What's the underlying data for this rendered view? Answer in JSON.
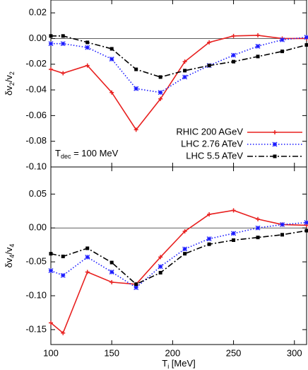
{
  "chart_data": [
    {
      "type": "line",
      "ylabel": [
        "δv",
        "2",
        "/v",
        "2"
      ],
      "annotation": [
        "T",
        "dec",
        " = 100 MeV"
      ],
      "x": [
        100,
        110,
        130,
        150,
        170,
        190,
        210,
        230,
        250,
        270,
        290,
        310
      ],
      "xlim": [
        100,
        310
      ],
      "xticks": [
        100,
        150,
        200,
        250,
        300
      ],
      "ylim": [
        -0.1,
        0.03
      ],
      "yticks": [
        {
          "value": 0.02,
          "label": "0.02"
        },
        {
          "value": 0,
          "label": "0.00"
        },
        {
          "value": -0.02,
          "label": "-0.02"
        },
        {
          "value": -0.04,
          "label": "-0.04"
        },
        {
          "value": -0.06,
          "label": "-0.06"
        },
        {
          "value": -0.08,
          "label": "-0.08"
        },
        {
          "value": -0.1,
          "label": "-0.10"
        }
      ],
      "legend": "lower right",
      "series": [
        {
          "name": "RHIC 200 AGeV",
          "color": "#e8201f",
          "dash": "solid",
          "marker": "plus",
          "values": [
            -0.024,
            -0.027,
            -0.021,
            -0.042,
            -0.071,
            -0.047,
            -0.018,
            -0.003,
            0.002,
            0.0025,
            0.0,
            0.0
          ]
        },
        {
          "name": "LHC 2.76 ATeV",
          "color": "#1a1aff",
          "dash": "dot",
          "marker": "star",
          "values": [
            -0.004,
            -0.004,
            -0.007,
            -0.016,
            -0.039,
            -0.042,
            -0.03,
            -0.021,
            -0.013,
            -0.006,
            -0.001,
            0.001
          ]
        },
        {
          "name": "LHC 5.5 ATeV",
          "color": "#000000",
          "dash": "dashdot",
          "marker": "square",
          "values": [
            0.002,
            0.002,
            -0.003,
            -0.008,
            -0.024,
            -0.03,
            -0.025,
            -0.021,
            -0.018,
            -0.014,
            -0.01,
            -0.005
          ]
        }
      ]
    },
    {
      "type": "line",
      "ylabel": [
        "δv",
        "4",
        "/v",
        "4"
      ],
      "xlabel": [
        "T",
        "i",
        " [MeV]"
      ],
      "x": [
        100,
        110,
        130,
        150,
        170,
        190,
        210,
        230,
        250,
        270,
        290,
        310
      ],
      "xlim": [
        100,
        310
      ],
      "xticks": [
        100,
        150,
        200,
        250,
        300
      ],
      "ylim": [
        -0.172,
        0.09
      ],
      "yticks": [
        {
          "value": 0.05,
          "label": "0.05"
        },
        {
          "value": 0,
          "label": "0.00"
        },
        {
          "value": -0.05,
          "label": "-0.05"
        },
        {
          "value": -0.1,
          "label": "-0.10"
        },
        {
          "value": -0.15,
          "label": "-0.15"
        }
      ],
      "series": [
        {
          "color": "#e8201f",
          "dash": "solid",
          "marker": "plus",
          "values": [
            -0.14,
            -0.155,
            -0.065,
            -0.08,
            -0.083,
            -0.043,
            -0.005,
            0.02,
            0.026,
            0.013,
            0.005,
            0.004
          ]
        },
        {
          "color": "#1a1aff",
          "dash": "dot",
          "marker": "star",
          "values": [
            -0.063,
            -0.07,
            -0.043,
            -0.065,
            -0.088,
            -0.057,
            -0.031,
            -0.016,
            -0.008,
            0.0,
            0.005,
            0.008
          ]
        },
        {
          "color": "#000000",
          "dash": "dashdot",
          "marker": "square",
          "values": [
            -0.038,
            -0.042,
            -0.03,
            -0.051,
            -0.083,
            -0.066,
            -0.038,
            -0.024,
            -0.018,
            -0.014,
            -0.01,
            -0.004
          ]
        }
      ]
    }
  ]
}
